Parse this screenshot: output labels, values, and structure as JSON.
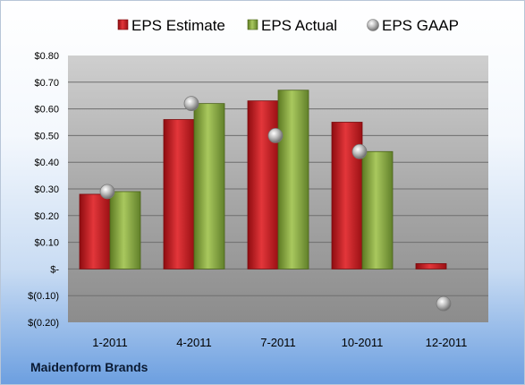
{
  "company": "Maidenform Brands",
  "chart_data": {
    "type": "bar",
    "categories": [
      "1-2011",
      "4-2011",
      "7-2011",
      "10-2011",
      "12-2011"
    ],
    "series": [
      {
        "name": "EPS Estimate",
        "kind": "bar",
        "color": "#c0161c",
        "values": [
          0.28,
          0.56,
          0.63,
          0.55,
          0.02
        ]
      },
      {
        "name": "EPS Actual",
        "kind": "bar",
        "color": "#7f9f3a",
        "values": [
          0.29,
          0.62,
          0.67,
          0.44,
          null
        ]
      },
      {
        "name": "EPS GAAP",
        "kind": "marker",
        "color": "#a8a8a8",
        "values": [
          0.29,
          0.62,
          0.5,
          0.44,
          -0.13
        ]
      }
    ],
    "y_ticks": [
      "$0.80",
      "$0.70",
      "$0.60",
      "$0.50",
      "$0.40",
      "$0.30",
      "$0.20",
      "$0.10",
      "$-",
      "$(0.10)",
      "$(0.20)"
    ],
    "ylim": [
      -0.2,
      0.8
    ],
    "grid": true,
    "legend": "top-center"
  }
}
